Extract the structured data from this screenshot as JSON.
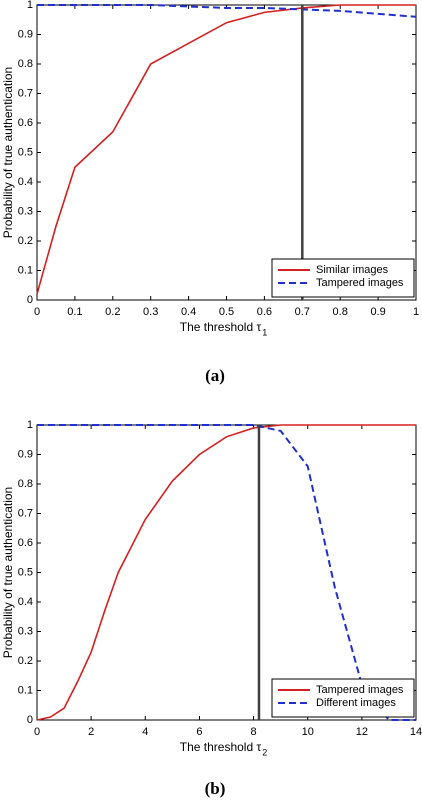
{
  "chart_data": [
    {
      "type": "line",
      "caption": "(a)",
      "xlabel": "The threshold τ",
      "xlabel_sub": "1",
      "ylabel": "Probability of true authentication",
      "x": [
        0,
        0.05,
        0.1,
        0.2,
        0.3,
        0.4,
        0.5,
        0.6,
        0.7,
        0.8,
        0.9,
        1
      ],
      "series": [
        {
          "name": "Similar images",
          "color": "#d62020",
          "style": "solid",
          "values": [
            0.02,
            0.25,
            0.45,
            0.57,
            0.8,
            0.87,
            0.94,
            0.975,
            0.99,
            1,
            1,
            1
          ]
        },
        {
          "name": "Tampered images",
          "color": "#1f2fd0",
          "style": "dashed",
          "values": [
            1,
            1,
            1,
            1,
            1,
            0.995,
            0.99,
            0.99,
            0.985,
            0.98,
            0.97,
            0.96
          ]
        }
      ],
      "vline": 0.7,
      "vline_color": "#404040",
      "xlim": [
        0,
        1
      ],
      "xticks": [
        0,
        0.1,
        0.2,
        0.3,
        0.4,
        0.5,
        0.6,
        0.7,
        0.8,
        0.9,
        1
      ],
      "ylim": [
        0,
        1
      ],
      "yticks": [
        0,
        0.1,
        0.2,
        0.3,
        0.4,
        0.5,
        0.6,
        0.7,
        0.8,
        0.9,
        1
      ],
      "grid": false,
      "legend": "lower right"
    },
    {
      "type": "line",
      "caption": "(b)",
      "xlabel": "The threshold τ",
      "xlabel_sub": "2",
      "ylabel": "Probability of true authentication",
      "x": [
        0,
        0.5,
        1,
        1.5,
        2,
        2.5,
        3,
        4,
        5,
        6,
        7,
        8,
        9,
        10,
        11,
        12,
        13,
        14
      ],
      "series": [
        {
          "name": "Tampered images",
          "color": "#d62020",
          "style": "solid",
          "values": [
            0,
            0.01,
            0.04,
            0.13,
            0.23,
            0.37,
            0.5,
            0.68,
            0.81,
            0.9,
            0.96,
            0.99,
            1,
            1,
            1,
            1,
            1,
            1
          ]
        },
        {
          "name": "Different images",
          "color": "#1f2fd0",
          "style": "dashed",
          "values": [
            1,
            1,
            1,
            1,
            1,
            1,
            1,
            1,
            1,
            1,
            1,
            1,
            0.98,
            0.86,
            0.45,
            0.12,
            0,
            0
          ]
        }
      ],
      "vline": 8.2,
      "vline_color": "#404040",
      "xlim": [
        0,
        14
      ],
      "xticks": [
        0,
        2,
        4,
        6,
        8,
        10,
        12,
        14
      ],
      "ylim": [
        0,
        1
      ],
      "yticks": [
        0,
        0.1,
        0.2,
        0.3,
        0.4,
        0.5,
        0.6,
        0.7,
        0.8,
        0.9,
        1
      ],
      "grid": false,
      "legend": "lower right"
    }
  ]
}
